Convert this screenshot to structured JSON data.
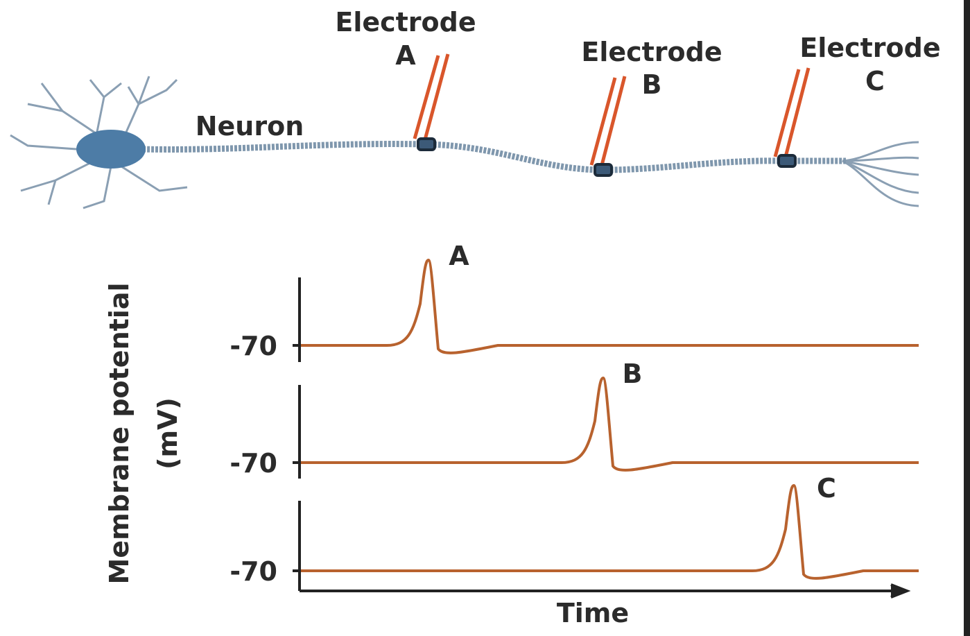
{
  "neuron_label": "Neuron",
  "electrodes": [
    {
      "label": "Electrode",
      "letter": "A"
    },
    {
      "label": "Electrode",
      "letter": "B"
    },
    {
      "label": "Electrode",
      "letter": "C"
    }
  ],
  "traces": [
    {
      "label": "A",
      "baseline_label": "-70"
    },
    {
      "label": "B",
      "baseline_label": "-70"
    },
    {
      "label": "C",
      "baseline_label": "-70"
    }
  ],
  "y_axis_label": [
    "Membrane potential",
    "(mV)"
  ],
  "x_axis_label": "Time"
}
